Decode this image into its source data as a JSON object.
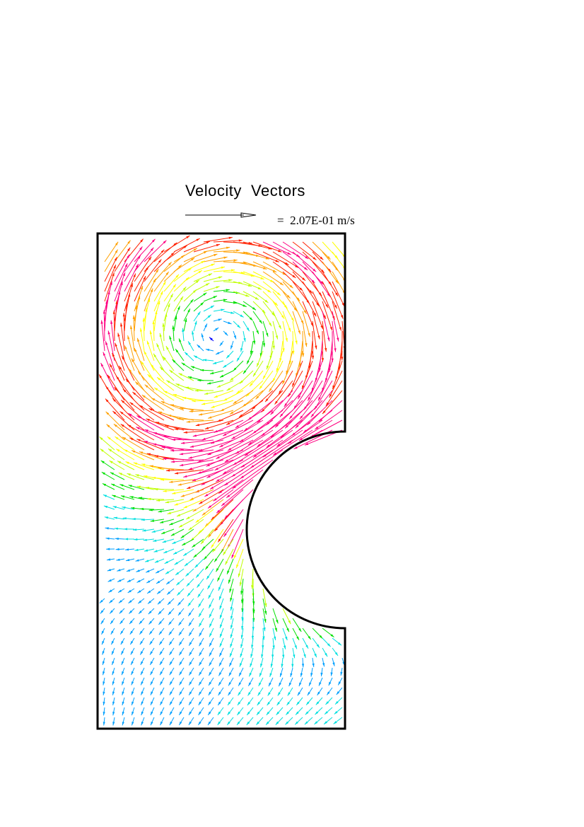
{
  "figure": {
    "title": "Velocity  Vectors",
    "reference_vector": {
      "label": "=  2.07E-01 m/s",
      "magnitude": 0.207,
      "unit": "m/s"
    },
    "domain_shape": "rectangle with semicircular cut-out on the right wall",
    "flow_features": [
      "primary vortex in upper half",
      "jet along cut-out",
      "weak flow in lower region"
    ],
    "colormap": [
      "#0000ff",
      "#00a0ff",
      "#00e0e0",
      "#00e000",
      "#c0ff00",
      "#ffff00",
      "#ffa000",
      "#ff2000",
      "#ff0080"
    ]
  }
}
